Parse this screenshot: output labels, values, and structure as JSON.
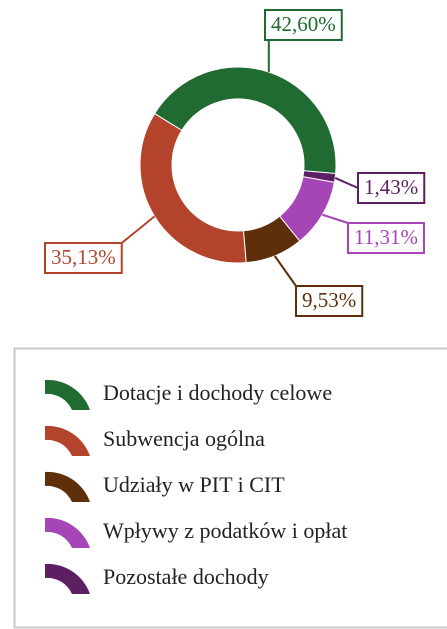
{
  "chart_data": {
    "type": "pie",
    "donut": true,
    "categories": [
      "Dotacje i dochody celowe",
      "Subwencja ogólna",
      "Udziały w PIT i CIT",
      "Wpływy z podatków i opłat",
      "Pozostałe dochody"
    ],
    "values": [
      42.6,
      35.13,
      9.53,
      11.31,
      1.43
    ],
    "value_labels": [
      "42,60%",
      "35,13%",
      "9,53%",
      "11,31%",
      "1,43%"
    ],
    "colors": [
      "#1f6b31",
      "#b3442b",
      "#5e2f0a",
      "#a646b6",
      "#5c1f62"
    ]
  }
}
